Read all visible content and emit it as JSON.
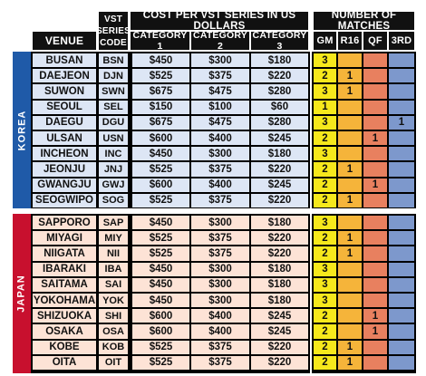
{
  "header": {
    "venue": "VENUE",
    "series_code": [
      "VST",
      "SERIES",
      "CODE"
    ],
    "cost_title": "COST PER VST SERIES IN US DOLLARS",
    "cat1": "CATEGORY 1",
    "cat2": "CATEGORY 2",
    "cat3": "CATEGORY 3",
    "matches_title": "NUMBER OF MATCHES",
    "gm": "GM",
    "r16": "R16",
    "qf": "QF",
    "third": "3RD"
  },
  "colors": {
    "korea_band": "#1f5aa8",
    "japan_band": "#c8102e",
    "korea_row": "#dde6f5",
    "japan_row": "#fde3d6",
    "gm": "#f6e81c",
    "r16": "#f5b43a",
    "qf": "#e8805f",
    "third": "#7d98cc"
  },
  "groups": [
    {
      "country": "KOREA",
      "rows": [
        {
          "venue": "BUSAN",
          "code": "BSN",
          "cat1": "$450",
          "cat2": "$300",
          "cat3": "$180",
          "gm": "3",
          "r16": "",
          "qf": "",
          "third": ""
        },
        {
          "venue": "DAEJEON",
          "code": "DJN",
          "cat1": "$525",
          "cat2": "$375",
          "cat3": "$220",
          "gm": "2",
          "r16": "1",
          "qf": "",
          "third": ""
        },
        {
          "venue": "SUWON",
          "code": "SWN",
          "cat1": "$675",
          "cat2": "$475",
          "cat3": "$280",
          "gm": "3",
          "r16": "1",
          "qf": "",
          "third": ""
        },
        {
          "venue": "SEOUL",
          "code": "SEL",
          "cat1": "$150",
          "cat2": "$100",
          "cat3": "$60",
          "gm": "1",
          "r16": "",
          "qf": "",
          "third": ""
        },
        {
          "venue": "DAEGU",
          "code": "DGU",
          "cat1": "$675",
          "cat2": "$475",
          "cat3": "$280",
          "gm": "3",
          "r16": "",
          "qf": "",
          "third": "1"
        },
        {
          "venue": "ULSAN",
          "code": "USN",
          "cat1": "$600",
          "cat2": "$400",
          "cat3": "$245",
          "gm": "2",
          "r16": "",
          "qf": "1",
          "third": ""
        },
        {
          "venue": "INCHEON",
          "code": "INC",
          "cat1": "$450",
          "cat2": "$300",
          "cat3": "$180",
          "gm": "3",
          "r16": "",
          "qf": "",
          "third": ""
        },
        {
          "venue": "JEONJU",
          "code": "JNJ",
          "cat1": "$525",
          "cat2": "$375",
          "cat3": "$220",
          "gm": "2",
          "r16": "1",
          "qf": "",
          "third": ""
        },
        {
          "venue": "GWANGJU",
          "code": "GWJ",
          "cat1": "$600",
          "cat2": "$400",
          "cat3": "$245",
          "gm": "2",
          "r16": "",
          "qf": "1",
          "third": ""
        },
        {
          "venue": "SEOGWIPO",
          "code": "SOG",
          "cat1": "$525",
          "cat2": "$375",
          "cat3": "$220",
          "gm": "2",
          "r16": "1",
          "qf": "",
          "third": ""
        }
      ]
    },
    {
      "country": "JAPAN",
      "rows": [
        {
          "venue": "SAPPORO",
          "code": "SAP",
          "cat1": "$450",
          "cat2": "$300",
          "cat3": "$180",
          "gm": "3",
          "r16": "",
          "qf": "",
          "third": ""
        },
        {
          "venue": "MIYAGI",
          "code": "MIY",
          "cat1": "$525",
          "cat2": "$375",
          "cat3": "$220",
          "gm": "2",
          "r16": "1",
          "qf": "",
          "third": ""
        },
        {
          "venue": "NIIGATA",
          "code": "NII",
          "cat1": "$525",
          "cat2": "$375",
          "cat3": "$220",
          "gm": "2",
          "r16": "1",
          "qf": "",
          "third": ""
        },
        {
          "venue": "IBARAKI",
          "code": "IBA",
          "cat1": "$450",
          "cat2": "$300",
          "cat3": "$180",
          "gm": "3",
          "r16": "",
          "qf": "",
          "third": ""
        },
        {
          "venue": "SAITAMA",
          "code": "SAI",
          "cat1": "$450",
          "cat2": "$300",
          "cat3": "$180",
          "gm": "3",
          "r16": "",
          "qf": "",
          "third": ""
        },
        {
          "venue": "YOKOHAMA",
          "code": "YOK",
          "cat1": "$450",
          "cat2": "$300",
          "cat3": "$180",
          "gm": "3",
          "r16": "",
          "qf": "",
          "third": ""
        },
        {
          "venue": "SHIZUOKA",
          "code": "SHI",
          "cat1": "$600",
          "cat2": "$400",
          "cat3": "$245",
          "gm": "2",
          "r16": "",
          "qf": "1",
          "third": ""
        },
        {
          "venue": "OSAKA",
          "code": "OSA",
          "cat1": "$600",
          "cat2": "$400",
          "cat3": "$245",
          "gm": "2",
          "r16": "",
          "qf": "1",
          "third": ""
        },
        {
          "venue": "KOBE",
          "code": "KOB",
          "cat1": "$525",
          "cat2": "$375",
          "cat3": "$220",
          "gm": "2",
          "r16": "1",
          "qf": "",
          "third": ""
        },
        {
          "venue": "OITA",
          "code": "OIT",
          "cat1": "$525",
          "cat2": "$375",
          "cat3": "$220",
          "gm": "2",
          "r16": "1",
          "qf": "",
          "third": ""
        }
      ]
    }
  ]
}
